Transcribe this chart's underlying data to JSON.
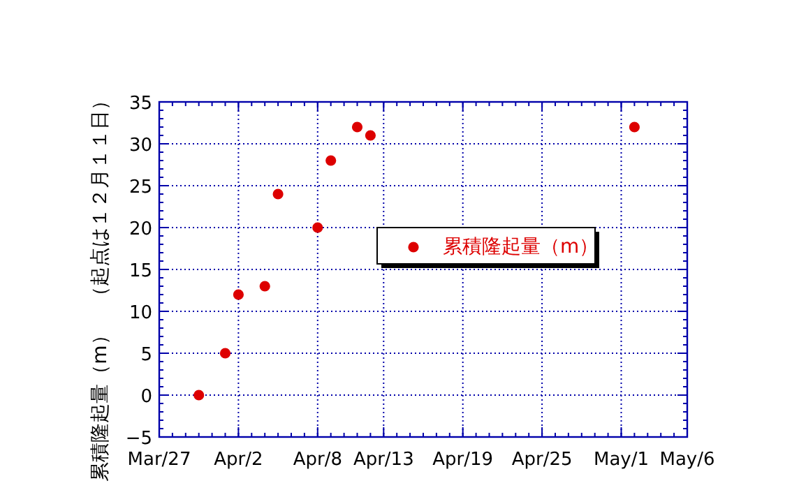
{
  "chart_data": {
    "type": "scatter",
    "ylabel": "累積隆起量（m）　（起点は１２月１１日）",
    "x": [
      "--03-30",
      "--04-01",
      "--04-02",
      "--04-04",
      "--04-05",
      "--04-08",
      "--04-09",
      "--04-11",
      "--04-12",
      "--05-02"
    ],
    "series": [
      {
        "name": "累積隆起量（m）",
        "color": "#dd0000",
        "values": [
          0,
          5,
          12,
          13,
          24,
          20,
          28,
          32,
          31,
          32
        ]
      }
    ],
    "xlim": [
      "--03-27",
      "--05-06"
    ],
    "xticks": [
      {
        "value": "--03-27",
        "label": "Mar/27"
      },
      {
        "value": "--04-02",
        "label": "Apr/2"
      },
      {
        "value": "--04-08",
        "label": "Apr/8"
      },
      {
        "value": "--04-13",
        "label": "Apr/13"
      },
      {
        "value": "--04-19",
        "label": "Apr/19"
      },
      {
        "value": "--04-25",
        "label": "Apr/25"
      },
      {
        "value": "--05-01",
        "label": "May/1"
      },
      {
        "value": "--05-06",
        "label": "May/6"
      }
    ],
    "ylim": [
      -5,
      35
    ],
    "yticks": [
      -5,
      0,
      5,
      10,
      15,
      20,
      25,
      30,
      35
    ],
    "grid": true,
    "legend": "center",
    "marker": "circle"
  }
}
